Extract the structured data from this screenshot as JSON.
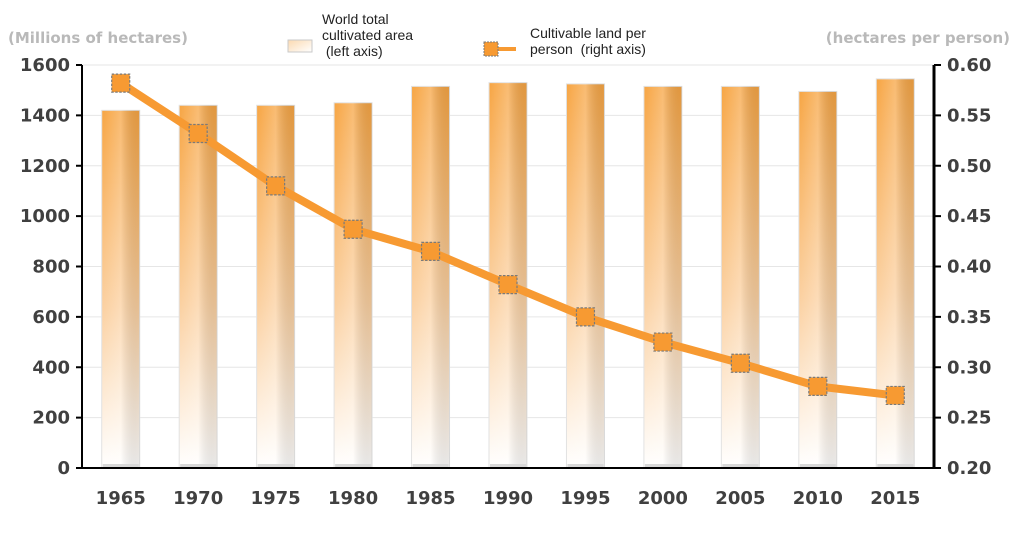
{
  "chart_data": {
    "type": "bar+line",
    "categories": [
      "1965",
      "1970",
      "1975",
      "1980",
      "1985",
      "1990",
      "1995",
      "2000",
      "2005",
      "2010",
      "2015"
    ],
    "left_axis": {
      "label": "(Millions of hectares)",
      "min": 0,
      "max": 1600,
      "ticks": [
        "0",
        "200",
        "400",
        "600",
        "800",
        "1000",
        "1200",
        "1400",
        "1600"
      ]
    },
    "right_axis": {
      "label": "(hectares per person)",
      "min": 0.2,
      "max": 0.6,
      "ticks": [
        "0.20",
        "0.25",
        "0.30",
        "0.35",
        "0.40",
        "0.45",
        "0.50",
        "0.55",
        "0.60"
      ]
    },
    "series": [
      {
        "name": "World total\ncultivated area\n (left axis)",
        "type": "bar",
        "axis": "left",
        "values": [
          1420,
          1440,
          1440,
          1450,
          1515,
          1530,
          1525,
          1515,
          1515,
          1495,
          1545
        ]
      },
      {
        "name": "Cultivable land per\nperson  (right axis)",
        "type": "line",
        "axis": "right",
        "values": [
          0.582,
          0.532,
          0.48,
          0.437,
          0.415,
          0.382,
          0.35,
          0.325,
          0.304,
          0.281,
          0.272
        ]
      }
    ],
    "colors": {
      "bar_top": "#f7a543",
      "bar_bottom": "#ffffff",
      "line": "#f79a32",
      "marker_border": "#7a7a7a"
    },
    "grid": true,
    "legend_position": "top-center"
  }
}
